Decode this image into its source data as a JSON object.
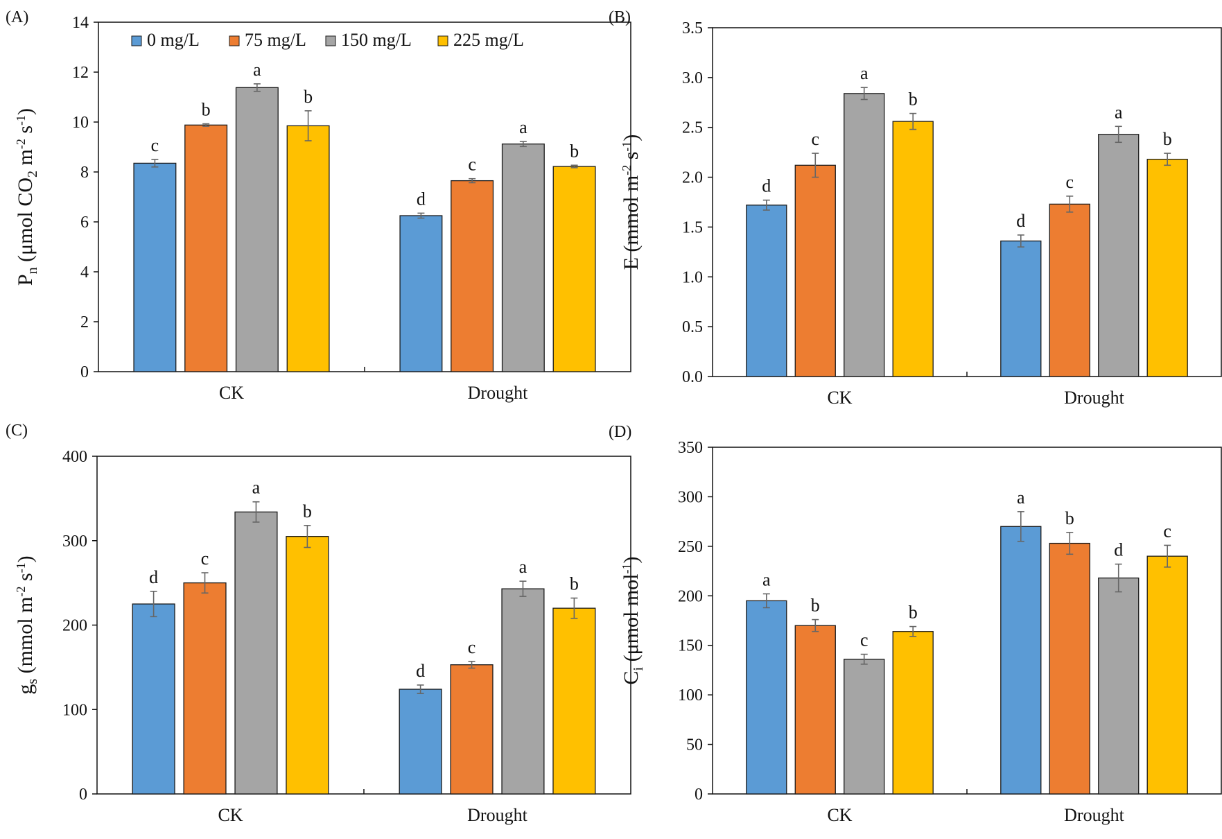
{
  "figure": {
    "series_names": [
      "0 mg/L",
      "75 mg/L",
      "150 mg/L",
      "225 mg/L"
    ],
    "colors": [
      "#5B9BD5",
      "#ED7D31",
      "#A5A5A5",
      "#FFC000"
    ]
  },
  "chart_data": [
    {
      "panel": "(A)",
      "type": "bar",
      "ylabel_parts": [
        [
          "P",
          "normal"
        ],
        [
          "n",
          "sub"
        ],
        [
          " (μmol CO",
          "normal"
        ],
        [
          "2",
          "sub"
        ],
        [
          " m",
          "normal"
        ],
        [
          "-2",
          "sup"
        ],
        [
          " s",
          "normal"
        ],
        [
          "-1",
          "sup"
        ],
        [
          ")",
          "normal"
        ]
      ],
      "categories": [
        "CK",
        "Drought"
      ],
      "ylim": [
        0,
        14
      ],
      "yticks": [
        0,
        2,
        4,
        6,
        8,
        10,
        12,
        14
      ],
      "tick_format": "0",
      "legend": "top",
      "series": [
        {
          "name": "0 mg/L",
          "values": [
            8.35,
            6.25
          ],
          "errors": [
            0.15,
            0.1
          ],
          "letters": [
            "c",
            "d"
          ]
        },
        {
          "name": "75 mg/L",
          "values": [
            9.88,
            7.65
          ],
          "errors": [
            0.05,
            0.08
          ],
          "letters": [
            "b",
            "c"
          ]
        },
        {
          "name": "150 mg/L",
          "values": [
            11.38,
            9.12
          ],
          "errors": [
            0.15,
            0.1
          ],
          "letters": [
            "a",
            "a"
          ]
        },
        {
          "name": "225 mg/L",
          "values": [
            9.85,
            8.22
          ],
          "errors": [
            0.6,
            0.05
          ],
          "letters": [
            "b",
            "b"
          ]
        }
      ]
    },
    {
      "panel": "(B)",
      "type": "bar",
      "ylabel_parts": [
        [
          "E (mmol m",
          "normal"
        ],
        [
          "-2",
          "sup"
        ],
        [
          " s",
          "normal"
        ],
        [
          "-1",
          "sup"
        ],
        [
          ")",
          "normal"
        ]
      ],
      "categories": [
        "CK",
        "Drought"
      ],
      "ylim": [
        0,
        3.5
      ],
      "yticks": [
        0,
        0.5,
        1.0,
        1.5,
        2.0,
        2.5,
        3.0,
        3.5
      ],
      "tick_format": "0.0",
      "series": [
        {
          "name": "0 mg/L",
          "values": [
            1.72,
            1.36
          ],
          "errors": [
            0.05,
            0.06
          ],
          "letters": [
            "d",
            "d"
          ]
        },
        {
          "name": "75 mg/L",
          "values": [
            2.12,
            1.73
          ],
          "errors": [
            0.12,
            0.08
          ],
          "letters": [
            "c",
            "c"
          ]
        },
        {
          "name": "150 mg/L",
          "values": [
            2.84,
            2.43
          ],
          "errors": [
            0.06,
            0.08
          ],
          "letters": [
            "a",
            "a"
          ]
        },
        {
          "name": "225 mg/L",
          "values": [
            2.56,
            2.18
          ],
          "errors": [
            0.08,
            0.06
          ],
          "letters": [
            "b",
            "b"
          ]
        }
      ]
    },
    {
      "panel": "(C)",
      "type": "bar",
      "ylabel_parts": [
        [
          "g",
          "normal"
        ],
        [
          "s",
          "sub"
        ],
        [
          " (mmol  m",
          "normal"
        ],
        [
          "-2",
          "sup"
        ],
        [
          " s",
          "normal"
        ],
        [
          "-1",
          "sup"
        ],
        [
          ")",
          "normal"
        ]
      ],
      "categories": [
        "CK",
        "Drought"
      ],
      "ylim": [
        0,
        400
      ],
      "yticks": [
        0,
        100,
        200,
        300,
        400
      ],
      "tick_format": "0",
      "series": [
        {
          "name": "0 mg/L",
          "values": [
            225,
            124
          ],
          "errors": [
            15,
            5
          ],
          "letters": [
            "d",
            "d"
          ]
        },
        {
          "name": "75 mg/L",
          "values": [
            250,
            153
          ],
          "errors": [
            12,
            4
          ],
          "letters": [
            "c",
            "c"
          ]
        },
        {
          "name": "150 mg/L",
          "values": [
            334,
            243
          ],
          "errors": [
            12,
            9
          ],
          "letters": [
            "a",
            "a"
          ]
        },
        {
          "name": "225 mg/L",
          "values": [
            305,
            220
          ],
          "errors": [
            13,
            12
          ],
          "letters": [
            "b",
            "b"
          ]
        }
      ]
    },
    {
      "panel": "(D)",
      "type": "bar",
      "ylabel_parts": [
        [
          "C",
          "normal"
        ],
        [
          "i",
          "sub"
        ],
        [
          " (μmol  mol",
          "normal"
        ],
        [
          "-1",
          "sup"
        ],
        [
          ")",
          "normal"
        ]
      ],
      "categories": [
        "CK",
        "Drought"
      ],
      "ylim": [
        0,
        350
      ],
      "yticks": [
        0,
        50,
        100,
        150,
        200,
        250,
        300,
        350
      ],
      "tick_format": "0",
      "series": [
        {
          "name": "0 mg/L",
          "values": [
            195,
            270
          ],
          "errors": [
            7,
            15
          ],
          "letters": [
            "a",
            "a"
          ]
        },
        {
          "name": "75 mg/L",
          "values": [
            170,
            253
          ],
          "errors": [
            6,
            11
          ],
          "letters": [
            "b",
            "b"
          ]
        },
        {
          "name": "150 mg/L",
          "values": [
            136,
            218
          ],
          "errors": [
            5,
            14
          ],
          "letters": [
            "c",
            "d"
          ]
        },
        {
          "name": "225 mg/L",
          "values": [
            164,
            240
          ],
          "errors": [
            5,
            11
          ],
          "letters": [
            "b",
            "c"
          ]
        }
      ]
    }
  ]
}
